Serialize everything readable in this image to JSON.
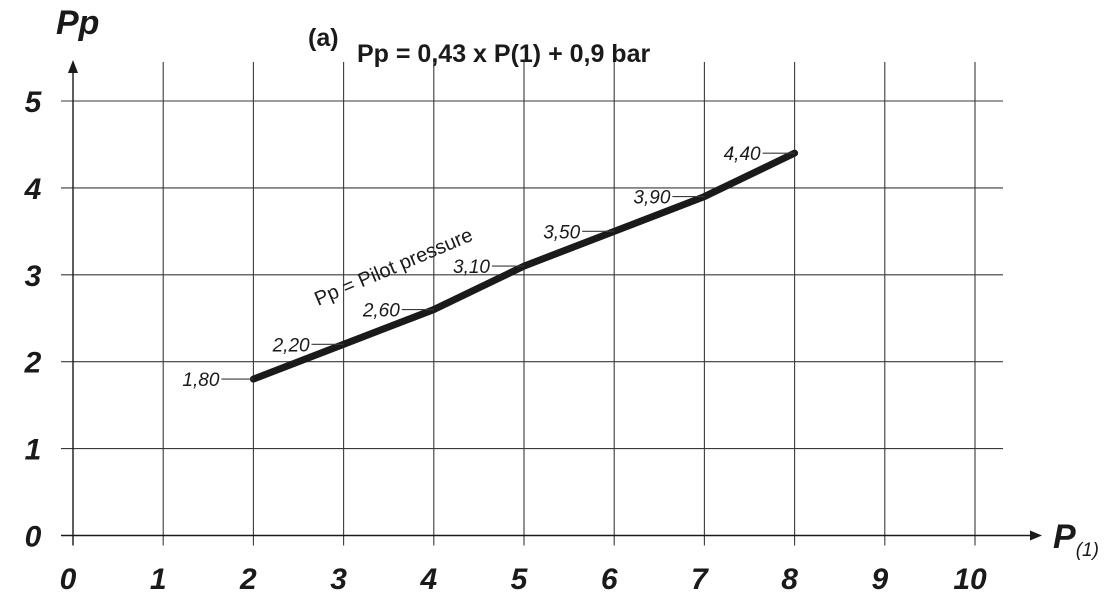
{
  "chart_data": {
    "type": "line",
    "title": "Pp = 0,43 x P(1) + 0,9 bar",
    "subtitle": "(a)",
    "xlabel": "P",
    "xlabel_subscript": "(1)",
    "ylabel": "Pp",
    "xlim": [
      0,
      10
    ],
    "ylim": [
      0,
      5
    ],
    "x_ticks": [
      "0",
      "1",
      "2",
      "3",
      "4",
      "5",
      "6",
      "7",
      "8",
      "9",
      "10"
    ],
    "y_ticks": [
      "0",
      "1",
      "2",
      "3",
      "4",
      "5"
    ],
    "grid": true,
    "series": [
      {
        "name": "Pp = Pilot pressure",
        "x": [
          2,
          3,
          4,
          5,
          6,
          7,
          8
        ],
        "y": [
          1.8,
          2.2,
          2.6,
          3.1,
          3.5,
          3.9,
          4.4
        ],
        "labels": [
          "1,80",
          "2,20",
          "2,60",
          "3,10",
          "3,50",
          "3,90",
          "4,40"
        ]
      }
    ],
    "colors": {
      "line": "#1a1a1a",
      "grid": "#3a3a3a",
      "text": "#1a1a1a"
    }
  }
}
